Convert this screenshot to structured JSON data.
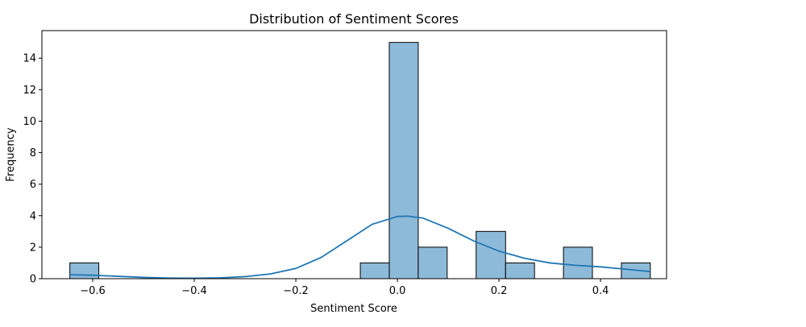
{
  "chart_data": {
    "type": "bar",
    "subtype": "histogram-with-kde",
    "title": "Distribution of Sentiment Scores",
    "xlabel": "Sentiment Score",
    "ylabel": "Frequency",
    "xlim": [
      -0.7,
      0.53
    ],
    "ylim": [
      0,
      15.75
    ],
    "xticks": [
      -0.6,
      -0.4,
      -0.2,
      0.0,
      0.2,
      0.4
    ],
    "xtick_labels": [
      "−0.6",
      "−0.4",
      "−0.2",
      "0.0",
      "0.2",
      "0.4"
    ],
    "yticks": [
      0,
      2,
      4,
      6,
      8,
      10,
      12,
      14
    ],
    "ytick_labels": [
      "0",
      "2",
      "4",
      "6",
      "8",
      "10",
      "12",
      "14"
    ],
    "bins": [
      {
        "x0": -0.645,
        "x1": -0.588,
        "count": 1
      },
      {
        "x0": -0.073,
        "x1": -0.016,
        "count": 1
      },
      {
        "x0": -0.016,
        "x1": 0.041,
        "count": 15
      },
      {
        "x0": 0.041,
        "x1": 0.098,
        "count": 2
      },
      {
        "x0": 0.155,
        "x1": 0.213,
        "count": 3
      },
      {
        "x0": 0.213,
        "x1": 0.27,
        "count": 1
      },
      {
        "x0": 0.327,
        "x1": 0.384,
        "count": 2
      },
      {
        "x0": 0.441,
        "x1": 0.498,
        "count": 1
      }
    ],
    "kde": {
      "x": [
        -0.645,
        -0.6,
        -0.55,
        -0.5,
        -0.45,
        -0.4,
        -0.35,
        -0.3,
        -0.25,
        -0.2,
        -0.15,
        -0.1,
        -0.05,
        0.0,
        0.02,
        0.05,
        0.1,
        0.15,
        0.2,
        0.25,
        0.3,
        0.35,
        0.4,
        0.45,
        0.498
      ],
      "y": [
        0.25,
        0.22,
        0.15,
        0.08,
        0.04,
        0.03,
        0.05,
        0.13,
        0.3,
        0.65,
        1.35,
        2.4,
        3.45,
        3.95,
        3.97,
        3.85,
        3.2,
        2.4,
        1.75,
        1.3,
        1.0,
        0.85,
        0.75,
        0.6,
        0.45
      ]
    },
    "colors": {
      "bar_fill": "#8ebad9",
      "bar_edge": "#000000",
      "kde_line": "#1f77b4"
    },
    "grid": false,
    "legend": "none"
  }
}
